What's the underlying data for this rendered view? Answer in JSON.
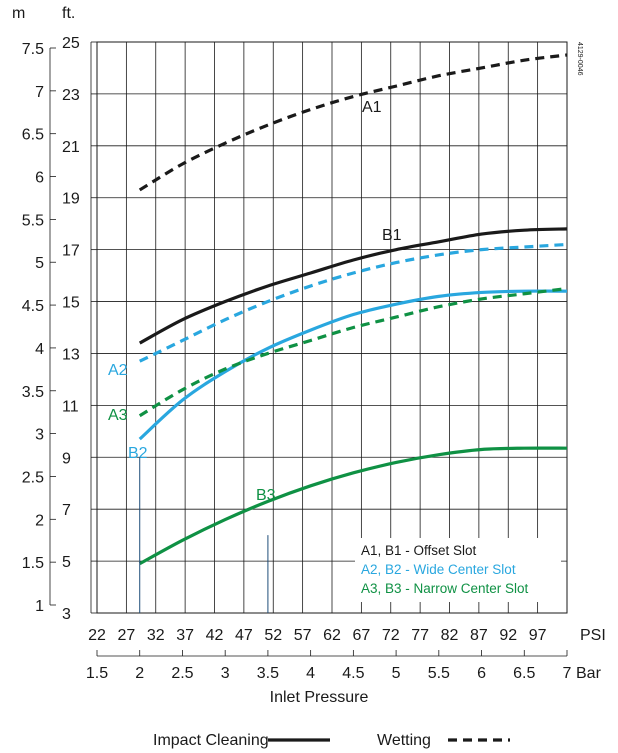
{
  "chart_data": {
    "type": "line",
    "title": "",
    "xlabel": "Inlet Pressure",
    "code_label": "4129-0046",
    "x_psi": {
      "unit": "PSI",
      "range": [
        22,
        102
      ],
      "ticks": [
        "22",
        "27",
        "32",
        "37",
        "42",
        "47",
        "52",
        "57",
        "62",
        "67",
        "72",
        "77",
        "82",
        "87",
        "92",
        "97"
      ]
    },
    "x_bar": {
      "unit": "Bar",
      "range": [
        1.5,
        7
      ],
      "ticks": [
        "1.5",
        "2",
        "2.5",
        "3",
        "3.5",
        "4",
        "4.5",
        "5",
        "5.5",
        "6",
        "6.5",
        "7"
      ]
    },
    "y_ft": {
      "unit": "ft.",
      "range": [
        3,
        25
      ],
      "ticks": [
        "3",
        "5",
        "7",
        "9",
        "11",
        "13",
        "15",
        "17",
        "19",
        "21",
        "23",
        "25"
      ]
    },
    "y_m": {
      "unit": "m",
      "ticks": [
        "1",
        "1.5",
        "2",
        "2.5",
        "3",
        "3.5",
        "4",
        "4.5",
        "5",
        "5.5",
        "6",
        "6.5",
        "7",
        "7.5"
      ]
    },
    "grid": true,
    "series": [
      {
        "name": "A1",
        "style": "dashed",
        "color": "#1a1a1a",
        "label_color": "#1a1a1a",
        "x": [
          2,
          2.5,
          3,
          3.5,
          4,
          4.5,
          5,
          5.5,
          6,
          6.5,
          7
        ],
        "y": [
          19.3,
          20.3,
          21.1,
          21.8,
          22.4,
          22.9,
          23.3,
          23.7,
          24.0,
          24.3,
          24.5
        ]
      },
      {
        "name": "B1",
        "style": "solid",
        "color": "#1a1a1a",
        "label_color": "#1a1a1a",
        "x": [
          2,
          2.5,
          3,
          3.5,
          4,
          4.5,
          5,
          5.5,
          6,
          6.5,
          7
        ],
        "y": [
          13.4,
          14.3,
          15.0,
          15.6,
          16.1,
          16.6,
          17.0,
          17.3,
          17.6,
          17.75,
          17.8
        ]
      },
      {
        "name": "A2",
        "style": "dashed",
        "color": "#29a7df",
        "label_color": "#29a7df",
        "x": [
          2,
          2.5,
          3,
          3.5,
          4,
          4.5,
          5,
          5.5,
          6,
          6.5,
          7
        ],
        "y": [
          12.7,
          13.5,
          14.3,
          15.0,
          15.6,
          16.1,
          16.5,
          16.8,
          17.0,
          17.1,
          17.2
        ]
      },
      {
        "name": "B2",
        "style": "solid",
        "color": "#29a7df",
        "label_color": "#29a7df",
        "x": [
          2,
          2.5,
          3,
          3.5,
          4,
          4.5,
          5,
          5.5,
          6,
          6.5,
          7
        ],
        "y": [
          9.7,
          11.2,
          12.3,
          13.2,
          13.9,
          14.5,
          14.9,
          15.2,
          15.35,
          15.4,
          15.4
        ]
      },
      {
        "name": "A3",
        "style": "dashed",
        "color": "#0f9144",
        "label_color": "#0f9144",
        "x": [
          2,
          2.5,
          3,
          3.5,
          4,
          4.5,
          5,
          5.5,
          6,
          6.5,
          7
        ],
        "y": [
          10.6,
          11.6,
          12.4,
          13.0,
          13.5,
          14.0,
          14.4,
          14.8,
          15.1,
          15.3,
          15.5
        ]
      },
      {
        "name": "B3",
        "style": "solid",
        "color": "#0f9144",
        "label_color": "#0f9144",
        "x": [
          2,
          2.5,
          3,
          3.5,
          4,
          4.5,
          5,
          5.5,
          6,
          6.5,
          7
        ],
        "y": [
          4.9,
          5.8,
          6.6,
          7.3,
          7.9,
          8.4,
          8.8,
          9.1,
          9.3,
          9.35,
          9.35
        ]
      }
    ],
    "legend_box": [
      {
        "text": "A1, B1 - Offset Slot",
        "color": "#1a1a1a"
      },
      {
        "text": "A2, B2 - Wide Center Slot",
        "color": "#29a7df"
      },
      {
        "text": "A3, B3 - Narrow Center Slot",
        "color": "#0f9144"
      }
    ],
    "style_legend": [
      {
        "text": "Impact Cleaning",
        "style": "solid"
      },
      {
        "text": "Wetting",
        "style": "dashed"
      }
    ]
  }
}
